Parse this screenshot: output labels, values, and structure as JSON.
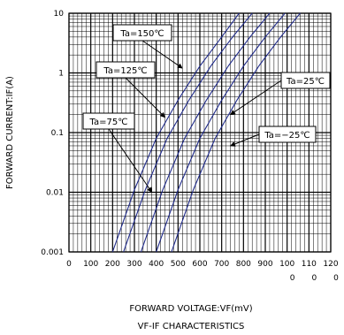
{
  "chart_data": {
    "type": "line",
    "x_scale": "linear",
    "y_scale": "log",
    "xlabel": "FORWARD VOLTAGE:VF(mV)",
    "ylabel": "FORWARD CURRENT:IF(A)",
    "caption": "VF-IF CHARACTERISTICS",
    "xlim": [
      0,
      1200
    ],
    "ylim": [
      0.001,
      10
    ],
    "x_ticks": [
      "0",
      "100",
      "200",
      "300",
      "400",
      "500",
      "600",
      "700",
      "800",
      "900",
      "100",
      "110",
      "120"
    ],
    "x_ticks_line2": [
      "",
      "",
      "",
      "",
      "",
      "",
      "",
      "",
      "",
      "",
      "0",
      "0",
      "0"
    ],
    "y_ticks": [
      "0.001",
      "0.01",
      "0.1",
      "1",
      "10"
    ],
    "grid": "minor_dense",
    "series": [
      {
        "name": "Ta=150℃",
        "x": [
          200,
          300,
          400,
          500,
          600,
          700,
          780
        ],
        "y": [
          0.001,
          0.011,
          0.08,
          0.35,
          1.3,
          4.0,
          10
        ]
      },
      {
        "name": "Ta=125℃",
        "x": [
          250,
          350,
          450,
          550,
          650,
          750,
          840
        ],
        "y": [
          0.001,
          0.011,
          0.08,
          0.35,
          1.3,
          4.0,
          10
        ]
      },
      {
        "name": "Ta=75℃",
        "x": [
          330,
          430,
          530,
          630,
          730,
          830,
          920
        ],
        "y": [
          0.001,
          0.011,
          0.08,
          0.35,
          1.3,
          4.0,
          10
        ]
      },
      {
        "name": "Ta=25℃",
        "x": [
          400,
          500,
          600,
          700,
          800,
          900,
          990
        ],
        "y": [
          0.001,
          0.011,
          0.08,
          0.35,
          1.3,
          4.0,
          10
        ]
      },
      {
        "name": "Ta=−25℃",
        "x": [
          470,
          570,
          670,
          770,
          870,
          970,
          1060
        ],
        "y": [
          0.001,
          0.011,
          0.08,
          0.35,
          1.3,
          4.0,
          10
        ]
      }
    ],
    "annotations": [
      {
        "text": "Ta=150℃",
        "series": 0,
        "target_x": 520,
        "target_y": 1.2
      },
      {
        "text": "Ta=125℃",
        "series": 1,
        "target_x": 440,
        "target_y": 0.18
      },
      {
        "text": "Ta=75℃",
        "series": 2,
        "target_x": 380,
        "target_y": 0.01
      },
      {
        "text": "Ta=25℃",
        "series": 3,
        "target_x": 740,
        "target_y": 0.2
      },
      {
        "text": "Ta=−25℃",
        "series": 4,
        "target_x": 740,
        "target_y": 0.06
      }
    ]
  },
  "colors": {
    "curve": "#1f2a8a",
    "grid": "#000000",
    "text": "#000000",
    "arrow": "#000000"
  }
}
